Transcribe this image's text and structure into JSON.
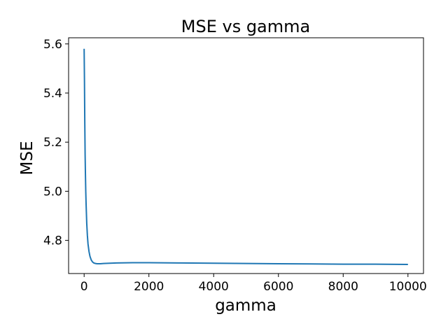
{
  "chart_data": {
    "type": "line",
    "title": "MSE vs gamma",
    "xlabel": "gamma",
    "ylabel": "MSE",
    "xlim": [
      -480,
      10480
    ],
    "ylim": [
      4.665,
      5.625
    ],
    "xticks": [
      0,
      2000,
      4000,
      6000,
      8000,
      10000
    ],
    "xtick_labels": [
      "0",
      "2000",
      "4000",
      "6000",
      "8000",
      "10000"
    ],
    "yticks": [
      4.8,
      5.0,
      5.2,
      5.4,
      5.6
    ],
    "ytick_labels": [
      "4.8",
      "5.0",
      "5.2",
      "5.4",
      "5.6"
    ],
    "grid": false,
    "series": [
      {
        "color": "#1f77b4",
        "x": [
          0,
          10,
          20,
          30,
          40,
          50,
          60,
          80,
          100,
          120,
          150,
          180,
          220,
          260,
          300,
          350,
          400,
          500,
          600,
          800,
          1000,
          1500,
          2000,
          3000,
          4000,
          5000,
          6000,
          7000,
          8000,
          9000,
          10000
        ],
        "y": [
          5.58,
          5.45,
          5.28,
          5.15,
          5.07,
          5.0,
          4.95,
          4.87,
          4.82,
          4.785,
          4.755,
          4.735,
          4.72,
          4.712,
          4.708,
          4.706,
          4.705,
          4.705,
          4.706,
          4.707,
          4.708,
          4.709,
          4.709,
          4.708,
          4.707,
          4.706,
          4.705,
          4.704,
          4.703,
          4.703,
          4.702
        ]
      }
    ]
  }
}
